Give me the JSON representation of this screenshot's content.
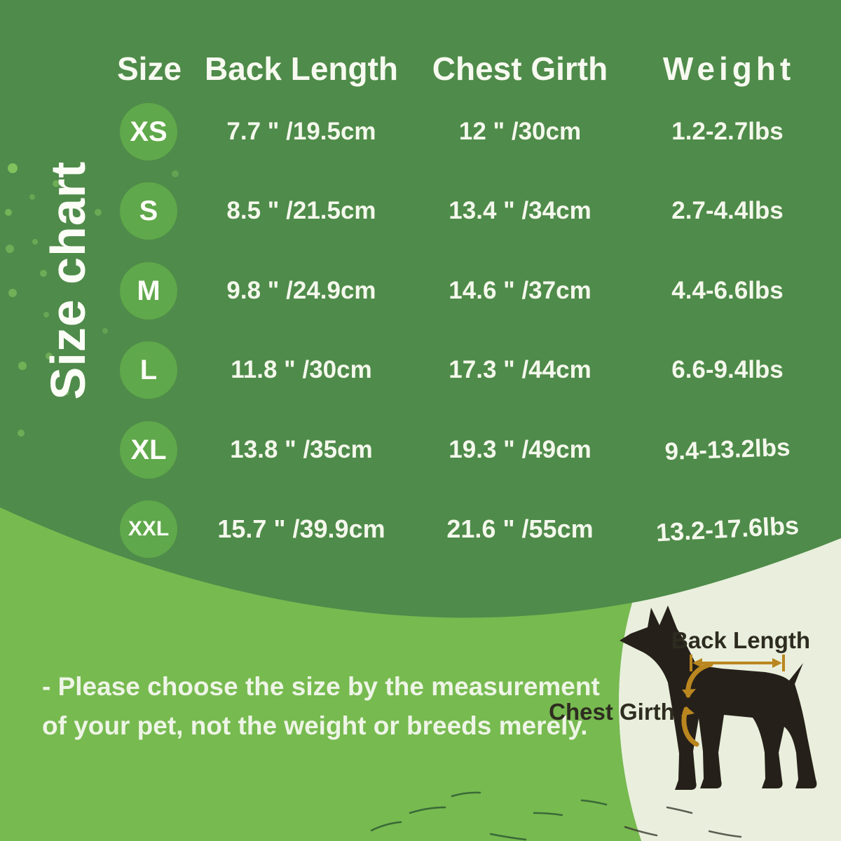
{
  "page": {
    "vertical_title": "Size chart",
    "note_line1": "- Please choose the size by the measurement",
    "note_line2": "of your pet, not the weight or breeds merely."
  },
  "table": {
    "headers": [
      "Size",
      "Back Length",
      "Chest Girth",
      "Weight"
    ],
    "rows": [
      {
        "size": "XS",
        "back": "7.7 \" /19.5cm",
        "chest": "12 \" /30cm",
        "weight": "1.2-2.7lbs"
      },
      {
        "size": "S",
        "back": "8.5 \" /21.5cm",
        "chest": "13.4 \" /34cm",
        "weight": "2.7-4.4lbs"
      },
      {
        "size": "M",
        "back": "9.8 \" /24.9cm",
        "chest": "14.6 \" /37cm",
        "weight": "4.4-6.6lbs"
      },
      {
        "size": "L",
        "back": "11.8 \" /30cm",
        "chest": "17.3 \" /44cm",
        "weight": "6.6-9.4lbs"
      },
      {
        "size": "XL",
        "back": "13.8 \" /35cm",
        "chest": "19.3 \" /49cm",
        "weight": "9.4-13.2lbs"
      },
      {
        "size": "XXL",
        "back": "15.7 \" /39.9cm",
        "chest": "21.6 \" /55cm",
        "weight": "13.2-17.6lbs"
      }
    ]
  },
  "diagram": {
    "back_length_label": "Back Length",
    "chest_girth_label": "Chest Girth"
  },
  "colors": {
    "background_green": "#4f8b4a",
    "circle_green": "#5fa84b",
    "light_green": "#77ba50",
    "cream": "#e9efdc",
    "text_light": "#f4f8ec",
    "arrow_orange": "#b9861f",
    "dog_dark": "#26201a",
    "label_dark": "#2e2c20"
  }
}
